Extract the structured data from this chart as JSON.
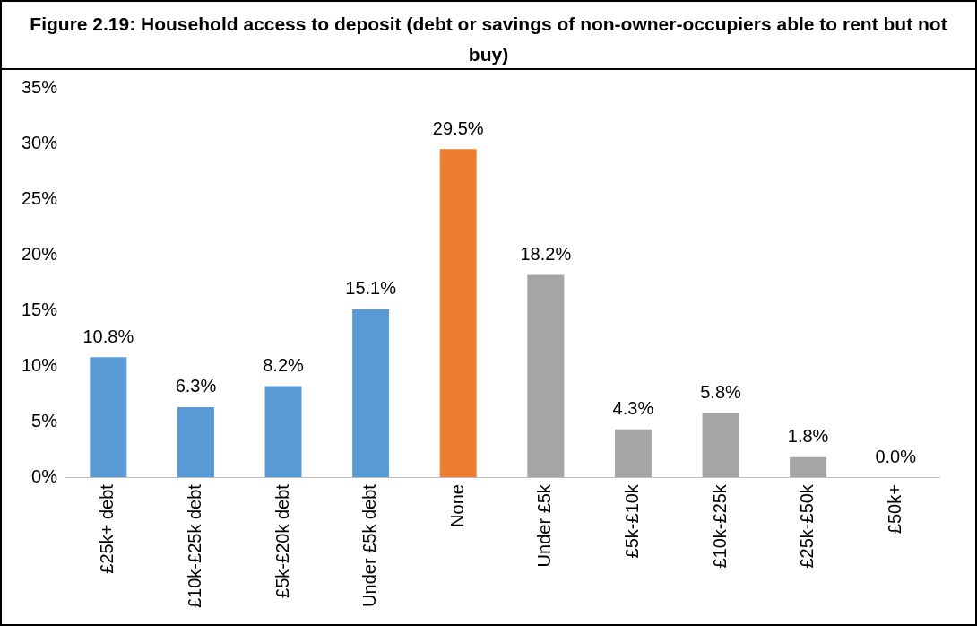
{
  "chart_data": {
    "type": "bar",
    "title": "Figure 2.19: Household access to deposit (debt or savings of non-owner-occupiers able to rent but not buy)",
    "categories": [
      "£25k+ debt",
      "£10k-£25k debt",
      "£5k-£20k debt",
      "Under £5k debt",
      "None",
      "Under £5k",
      "£5k-£10k",
      "£10k-£25k",
      "£25k-£50k",
      "£50k+"
    ],
    "values": [
      10.8,
      6.3,
      8.2,
      15.1,
      29.5,
      18.2,
      4.3,
      5.8,
      1.8,
      0.0
    ],
    "colors": [
      "#5b9bd5",
      "#5b9bd5",
      "#5b9bd5",
      "#5b9bd5",
      "#ed7d31",
      "#a5a5a5",
      "#a5a5a5",
      "#a5a5a5",
      "#a5a5a5",
      "#a5a5a5"
    ],
    "value_labels": [
      "10.8%",
      "6.3%",
      "8.2%",
      "15.1%",
      "29.5%",
      "18.2%",
      "4.3%",
      "5.8%",
      "1.8%",
      "0.0%"
    ],
    "ylim": [
      0,
      35
    ],
    "yticks": [
      {
        "value": 0,
        "label": "0%"
      },
      {
        "value": 5,
        "label": "5%"
      },
      {
        "value": 10,
        "label": "10%"
      },
      {
        "value": 15,
        "label": "15%"
      },
      {
        "value": 20,
        "label": "20%"
      },
      {
        "value": 25,
        "label": "25%"
      },
      {
        "value": 30,
        "label": "30%"
      },
      {
        "value": 35,
        "label": "35%"
      }
    ],
    "grid": false,
    "legend": false
  }
}
